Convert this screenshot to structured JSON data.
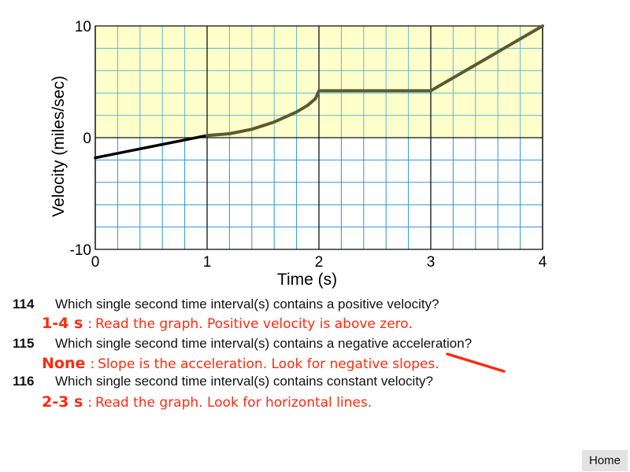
{
  "chart_data": {
    "type": "line",
    "xlabel": "Time (s)",
    "ylabel": "Velocity (miles/sec)",
    "xlim": [
      0,
      4
    ],
    "ylim": [
      -10,
      10
    ],
    "x_ticks": [
      "0",
      "1",
      "2",
      "3",
      "4"
    ],
    "y_ticks": [
      "-10",
      "0",
      "10"
    ],
    "grid": true,
    "colors": {
      "positive_region": "#ffffcc",
      "grid_positive": "#5fb8c8",
      "grid_negative": "#2c94d6",
      "major_grid": "#111111",
      "line_initial": "#000000",
      "line_main": "#5a5a32"
    },
    "series": [
      {
        "segment": "initial",
        "points": [
          [
            0,
            -1.8
          ],
          [
            1,
            0.2
          ]
        ]
      },
      {
        "segment": "main",
        "points": [
          [
            1,
            0.2
          ],
          [
            1.2,
            0.35
          ],
          [
            1.4,
            0.75
          ],
          [
            1.6,
            1.4
          ],
          [
            1.8,
            2.3
          ],
          [
            1.9,
            2.9
          ],
          [
            1.97,
            3.5
          ],
          [
            2,
            4.2
          ],
          [
            3,
            4.2
          ],
          [
            4,
            10
          ]
        ]
      }
    ]
  },
  "questions": [
    {
      "number": "114",
      "text": "Which single second time interval(s) contains a positive velocity?",
      "answer": "1-4 s",
      "explanation": "Read the graph. Positive velocity is above zero."
    },
    {
      "number": "115",
      "text": "Which single second time interval(s) contains a negative acceleration?",
      "answer": "None",
      "explanation": "Slope is the acceleration. Look for negative slopes."
    },
    {
      "number": "116",
      "text": "Which single second time interval(s) contains constant velocity?",
      "answer": "2-3 s",
      "explanation": "Read the graph. Look for horizontal lines."
    }
  ],
  "answer_separator": ":",
  "nav": {
    "home_label": "Home"
  }
}
